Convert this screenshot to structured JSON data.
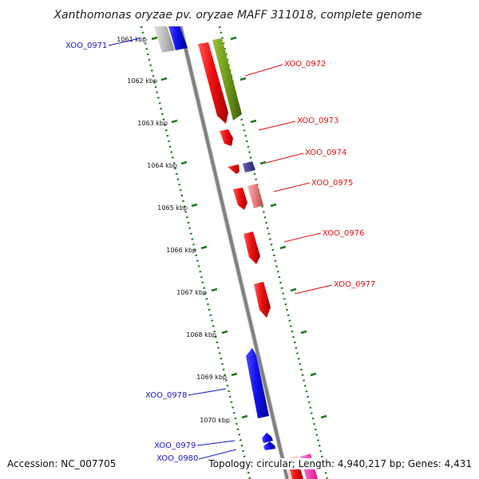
{
  "title": "Xanthomonas oryzae pv. oryzae MAFF 311018, complete genome",
  "footer": {
    "accession": "Accession: NC_007705",
    "summary": "Topology: circular; Length: 4,940,217 bp; Genes: 4,431"
  },
  "colors": {
    "backbone": "#888888",
    "scale_dots": "#1e7b1e",
    "forward_label": "#dd1111",
    "reverse_label": "#1616cc"
  },
  "scale_labels": [
    "1061 kbp",
    "1062 kbp",
    "1063 kbp",
    "1064 kbp",
    "1065 kbp",
    "1066 kbp",
    "1067 kbp",
    "1068 kbp",
    "1069 kbp",
    "1070 kbp"
  ],
  "genes": [
    {
      "id": "XOO_0971",
      "strand": "reverse",
      "color": "#1a1aee"
    },
    {
      "id": "XOO_0972",
      "strand": "forward",
      "color": "#ee1111"
    },
    {
      "id": "XOO_0973",
      "strand": "forward",
      "color": "#ee1111"
    },
    {
      "id": "XOO_0974",
      "strand": "forward",
      "color": "#ee1111"
    },
    {
      "id": "XOO_0975",
      "strand": "forward",
      "color": "#ee1111"
    },
    {
      "id": "XOO_0976",
      "strand": "forward",
      "color": "#ee1111"
    },
    {
      "id": "XOO_0977",
      "strand": "forward",
      "color": "#ee1111"
    },
    {
      "id": "XOO_0978",
      "strand": "reverse",
      "color": "#1a1aee"
    },
    {
      "id": "XOO_0979",
      "strand": "reverse",
      "color": "#1a1aee"
    },
    {
      "id": "XOO_0980",
      "strand": "reverse",
      "color": "#1a1aee"
    }
  ]
}
